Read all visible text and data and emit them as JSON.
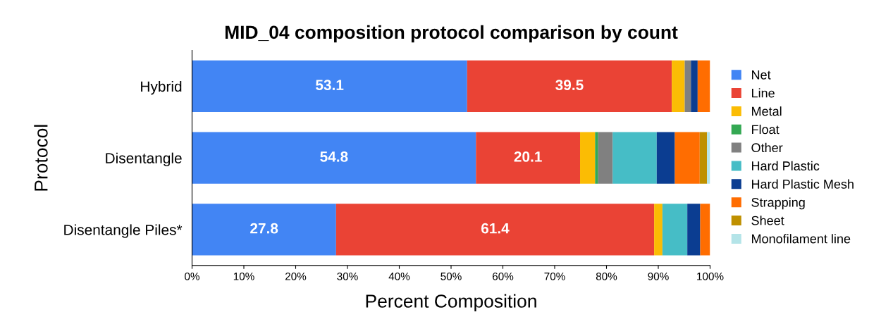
{
  "chart_data": {
    "type": "bar",
    "orientation": "horizontal",
    "stacked": true,
    "title": "MID_04 composition protocol comparison by count",
    "xlabel": "Percent Composition",
    "ylabel": "Protocol",
    "categories": [
      "Hybrid",
      "Disentangle",
      "Disentangle Piles*"
    ],
    "series": [
      {
        "name": "Net",
        "color": "#4285f4",
        "values": [
          53.1,
          54.8,
          27.8
        ],
        "value_labels": [
          "53.1",
          "54.8",
          "27.8"
        ]
      },
      {
        "name": "Line",
        "color": "#ea4335",
        "values": [
          39.5,
          20.1,
          61.4
        ],
        "value_labels": [
          "39.5",
          "20.1",
          "61.4"
        ]
      },
      {
        "name": "Metal",
        "color": "#fbbc04",
        "values": [
          2.5,
          2.9,
          1.6
        ]
      },
      {
        "name": "Float",
        "color": "#34a853",
        "values": [
          0,
          0.6,
          0
        ]
      },
      {
        "name": "Other",
        "color": "#808080",
        "values": [
          1.2,
          2.8,
          0
        ]
      },
      {
        "name": "Hard Plastic",
        "color": "#46bdc6",
        "values": [
          0,
          8.5,
          4.8
        ]
      },
      {
        "name": "Hard Plastic Mesh",
        "color": "#0b3d91",
        "values": [
          1.3,
          3.5,
          2.5
        ]
      },
      {
        "name": "Strapping",
        "color": "#ff6d01",
        "values": [
          2.4,
          4.8,
          1.9
        ]
      },
      {
        "name": "Sheet",
        "color": "#bf9000",
        "values": [
          0,
          1.4,
          0
        ]
      },
      {
        "name": "Monofilament line",
        "color": "#b4e4e8",
        "values": [
          0,
          0.6,
          0
        ]
      }
    ],
    "xlim": [
      0,
      100
    ],
    "xticks": [
      {
        "value": 0,
        "label": "0%"
      },
      {
        "value": 10,
        "label": "10%"
      },
      {
        "value": 20,
        "label": "20%"
      },
      {
        "value": 30,
        "label": "30%"
      },
      {
        "value": 40,
        "label": "40%"
      },
      {
        "value": 50,
        "label": "50%"
      },
      {
        "value": 60,
        "label": "60%"
      },
      {
        "value": 70,
        "label": "70%"
      },
      {
        "value": 80,
        "label": "80%"
      },
      {
        "value": 90,
        "label": "90%"
      },
      {
        "value": 100,
        "label": "100%"
      }
    ],
    "grid": false,
    "legend": "right"
  }
}
